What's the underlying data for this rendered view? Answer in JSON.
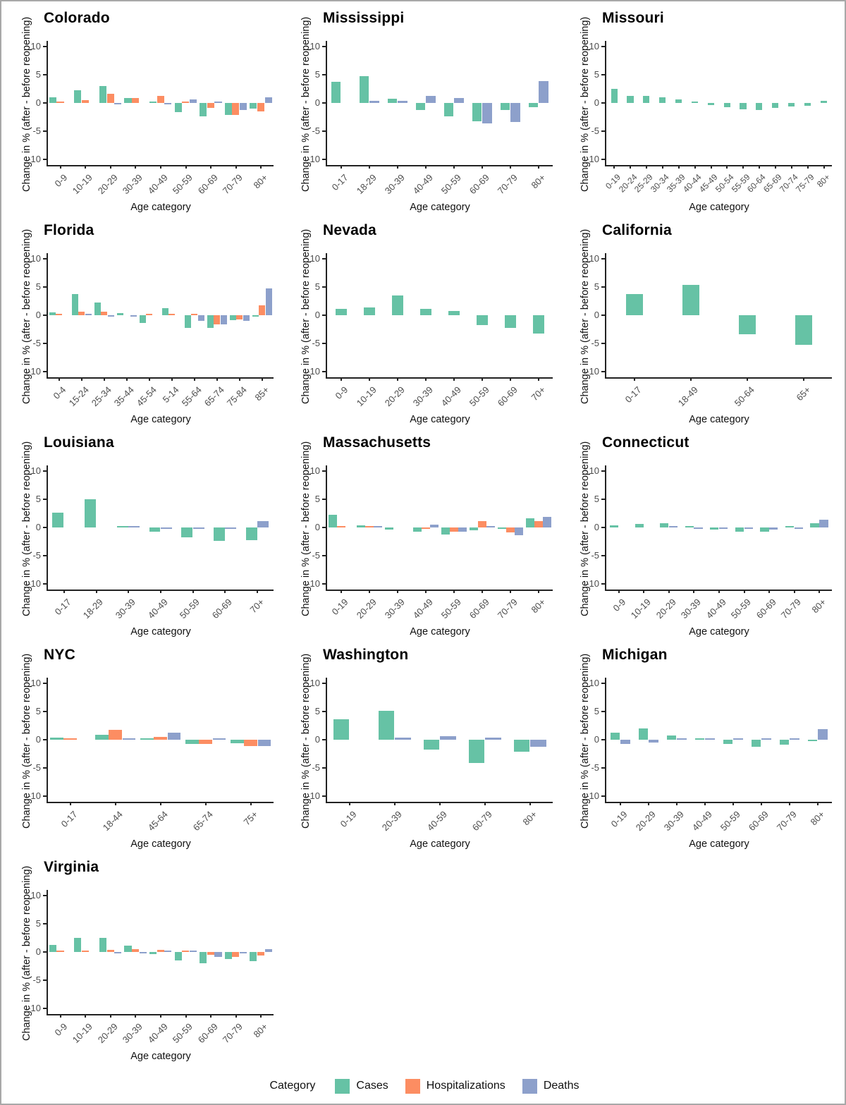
{
  "figure": {
    "ylabel": "Change in % (after - before reopening)",
    "xlabel": "Age category",
    "yticks": [
      10,
      5,
      0,
      -5,
      -10
    ],
    "ylim": [
      -11,
      11
    ],
    "colors": {
      "Cases": "#66C2A5",
      "Hospitalizations": "#FC8D62",
      "Deaths": "#8DA0CB"
    },
    "legend": {
      "title": "Category",
      "items": [
        {
          "label": "Cases",
          "color": "#66C2A5"
        },
        {
          "label": "Hospitalizations",
          "color": "#FC8D62"
        },
        {
          "label": "Deaths",
          "color": "#8DA0CB"
        }
      ]
    }
  },
  "chart_data": [
    {
      "type": "bar",
      "title": "Colorado",
      "xlabel": "Age category",
      "ylabel": "Change in % (after - before reopening)",
      "ylim": [
        -11,
        11
      ],
      "grid": false,
      "categories": [
        "0-9",
        "10-19",
        "20-29",
        "30-39",
        "40-49",
        "50-59",
        "60-69",
        "70-79",
        "80+"
      ],
      "series": [
        {
          "name": "Cases",
          "values": [
            1.0,
            2.2,
            3.0,
            0.9,
            0.3,
            -1.6,
            -2.4,
            -2.1,
            -1.0
          ]
        },
        {
          "name": "Hospitalizations",
          "values": [
            0.3,
            0.5,
            1.6,
            0.9,
            1.2,
            0.2,
            -0.9,
            -2.1,
            -1.5
          ]
        },
        {
          "name": "Deaths",
          "values": [
            null,
            null,
            -0.1,
            null,
            -0.3,
            0.6,
            0.2,
            -1.2,
            1.0
          ]
        }
      ]
    },
    {
      "type": "bar",
      "title": "Mississippi",
      "xlabel": "Age category",
      "ylabel": "Change in % (after - before reopening)",
      "ylim": [
        -11,
        11
      ],
      "grid": false,
      "categories": [
        "0-17",
        "18-29",
        "30-39",
        "40-49",
        "50-59",
        "60-69",
        "70-79",
        "80+"
      ],
      "series": [
        {
          "name": "Cases",
          "values": [
            3.8,
            4.8,
            0.8,
            -1.2,
            -2.4,
            -3.3,
            -1.3,
            -0.7
          ]
        },
        {
          "name": "Deaths",
          "values": [
            null,
            0.4,
            0.4,
            1.3,
            0.9,
            -3.6,
            -3.4,
            3.9
          ]
        }
      ]
    },
    {
      "type": "bar",
      "title": "Missouri",
      "xlabel": "Age category",
      "ylabel": "Change in % (after - before reopening)",
      "ylim": [
        -11,
        11
      ],
      "grid": false,
      "categories": [
        "0-19",
        "20-24",
        "25-29",
        "30-34",
        "35-39",
        "40-44",
        "45-49",
        "50-54",
        "55-59",
        "60-64",
        "65-69",
        "70-74",
        "75-79",
        "80+"
      ],
      "series": [
        {
          "name": "Cases",
          "values": [
            2.5,
            1.3,
            1.2,
            1.0,
            0.6,
            0,
            -0.4,
            -0.7,
            -1.1,
            -1.3,
            -0.9,
            -0.6,
            -0.5,
            0.4
          ]
        }
      ]
    },
    {
      "type": "bar",
      "title": "Florida",
      "xlabel": "Age category",
      "ylabel": "Change in % (after - before reopening)",
      "ylim": [
        -11,
        11
      ],
      "grid": false,
      "categories": [
        "0-4",
        "15-24",
        "25-34",
        "35-44",
        "45-54",
        "5-14",
        "55-64",
        "65-74",
        "75-84",
        "85+"
      ],
      "series": [
        {
          "name": "Cases",
          "values": [
            0.5,
            3.7,
            2.3,
            0.4,
            -1.4,
            1.2,
            -2.2,
            -2.3,
            -0.9,
            -0.2
          ]
        },
        {
          "name": "Hospitalizations",
          "values": [
            0.3,
            0.6,
            0.6,
            null,
            0.1,
            0.3,
            0.2,
            -1.6,
            -0.8,
            1.7
          ]
        },
        {
          "name": "Deaths",
          "values": [
            null,
            0.2,
            -0.3,
            -0.1,
            null,
            null,
            -1.0,
            -1.6,
            -1.0,
            4.8
          ]
        }
      ]
    },
    {
      "type": "bar",
      "title": "Nevada",
      "xlabel": "Age category",
      "ylabel": "Change in % (after - before reopening)",
      "ylim": [
        -11,
        11
      ],
      "grid": false,
      "categories": [
        "0-9",
        "10-19",
        "20-29",
        "30-39",
        "40-49",
        "50-59",
        "60-69",
        "70+"
      ],
      "series": [
        {
          "name": "Cases",
          "values": [
            1.1,
            1.4,
            3.5,
            1.1,
            0.8,
            -1.7,
            -2.2,
            -3.2
          ]
        }
      ]
    },
    {
      "type": "bar",
      "title": "California",
      "xlabel": "Age category",
      "ylabel": "Change in % (after - before reopening)",
      "ylim": [
        -11,
        11
      ],
      "grid": false,
      "categories": [
        "0-17",
        "18-49",
        "50-64",
        "65+"
      ],
      "series": [
        {
          "name": "Cases",
          "values": [
            3.7,
            5.4,
            -3.4,
            -5.3
          ]
        }
      ]
    },
    {
      "type": "bar",
      "title": "Louisiana",
      "xlabel": "Age category",
      "ylabel": "Change in % (after - before reopening)",
      "ylim": [
        -11,
        11
      ],
      "grid": false,
      "categories": [
        "0-17",
        "18-29",
        "30-39",
        "40-49",
        "50-59",
        "60-69",
        "70+"
      ],
      "series": [
        {
          "name": "Cases",
          "values": [
            2.6,
            5.0,
            0.3,
            -0.8,
            -1.8,
            -2.4,
            -2.2
          ]
        },
        {
          "name": "Deaths",
          "values": [
            null,
            null,
            0.1,
            -0.1,
            -0.2,
            -0.3,
            1.1
          ]
        }
      ]
    },
    {
      "type": "bar",
      "title": "Massachusetts",
      "xlabel": "Age category",
      "ylabel": "Change in % (after - before reopening)",
      "ylim": [
        -11,
        11
      ],
      "grid": false,
      "categories": [
        "0-19",
        "20-29",
        "30-39",
        "40-49",
        "50-59",
        "60-69",
        "70-79",
        "80+"
      ],
      "series": [
        {
          "name": "Cases",
          "values": [
            2.3,
            0.4,
            -0.4,
            -0.7,
            -1.3,
            -0.5,
            -0.3,
            1.6
          ]
        },
        {
          "name": "Hospitalizations",
          "values": [
            0.2,
            0.25,
            null,
            -0.2,
            -0.7,
            1.1,
            -0.9,
            1.1
          ]
        },
        {
          "name": "Deaths",
          "values": [
            null,
            0.15,
            null,
            0.5,
            -0.7,
            0.3,
            -1.4,
            1.9
          ]
        }
      ]
    },
    {
      "type": "bar",
      "title": "Connecticut",
      "xlabel": "Age category",
      "ylabel": "Change in % (after - before reopening)",
      "ylim": [
        -11,
        11
      ],
      "grid": false,
      "categories": [
        "0-9",
        "10-19",
        "20-29",
        "30-39",
        "40-49",
        "50-59",
        "60-69",
        "70-79",
        "80+"
      ],
      "series": [
        {
          "name": "Cases",
          "values": [
            0.4,
            0.6,
            0.8,
            0.2,
            -0.4,
            -0.7,
            -0.7,
            0.1,
            0.7
          ]
        },
        {
          "name": "Deaths",
          "values": [
            null,
            null,
            0.2,
            -0.1,
            -0.1,
            -0.2,
            -0.4,
            -0.3,
            1.4
          ]
        }
      ]
    },
    {
      "type": "bar",
      "title": "NYC",
      "xlabel": "Age category",
      "ylabel": "Change in % (after - before reopening)",
      "ylim": [
        -11,
        11
      ],
      "grid": false,
      "categories": [
        "0-17",
        "18-44",
        "45-64",
        "65-74",
        "75+"
      ],
      "series": [
        {
          "name": "Cases",
          "values": [
            0.4,
            0.9,
            0.1,
            -0.7,
            -0.6
          ]
        },
        {
          "name": "Hospitalizations",
          "values": [
            0.3,
            1.8,
            0.5,
            -0.8,
            -1.1
          ]
        },
        {
          "name": "Deaths",
          "values": [
            null,
            0.2,
            1.2,
            0.1,
            -1.1
          ]
        }
      ]
    },
    {
      "type": "bar",
      "title": "Washington",
      "xlabel": "Age category",
      "ylabel": "Change in % (after - before reopening)",
      "ylim": [
        -11,
        11
      ],
      "grid": false,
      "categories": [
        "0-19",
        "20-39",
        "40-59",
        "60-79",
        "80+"
      ],
      "series": [
        {
          "name": "Cases",
          "values": [
            3.6,
            5.1,
            -1.8,
            -4.1,
            -2.1
          ]
        },
        {
          "name": "Deaths",
          "values": [
            null,
            0.4,
            0.6,
            0.4,
            -1.2
          ]
        }
      ]
    },
    {
      "type": "bar",
      "title": "Michigan",
      "xlabel": "Age category",
      "ylabel": "Change in % (after - before reopening)",
      "ylim": [
        -11,
        11
      ],
      "grid": false,
      "categories": [
        "0-19",
        "20-29",
        "30-39",
        "40-49",
        "50-59",
        "60-69",
        "70-79",
        "80+"
      ],
      "series": [
        {
          "name": "Cases",
          "values": [
            1.3,
            2.0,
            0.8,
            0.2,
            -0.7,
            -1.2,
            -0.9,
            -0.3
          ]
        },
        {
          "name": "Deaths",
          "values": [
            -0.7,
            -0.5,
            0.1,
            0.1,
            0.1,
            0.1,
            0.1,
            1.9
          ]
        }
      ]
    },
    {
      "type": "bar",
      "title": "Virginia",
      "xlabel": "Age category",
      "ylabel": "Change in % (after - before reopening)",
      "ylim": [
        -11,
        11
      ],
      "grid": false,
      "categories": [
        "0-9",
        "10-19",
        "20-29",
        "30-39",
        "40-49",
        "50-59",
        "60-69",
        "70-79",
        "80+"
      ],
      "series": [
        {
          "name": "Cases",
          "values": [
            1.2,
            2.5,
            2.5,
            1.1,
            -0.4,
            -1.5,
            -2.0,
            -1.3,
            -1.6
          ]
        },
        {
          "name": "Hospitalizations",
          "values": [
            0.2,
            0.2,
            0.4,
            0.5,
            0.4,
            0.2,
            -0.5,
            -0.9,
            -0.6
          ]
        },
        {
          "name": "Deaths",
          "values": [
            null,
            null,
            -0.1,
            -0.1,
            0.3,
            0.3,
            -0.9,
            -0.2,
            0.5
          ]
        }
      ]
    }
  ]
}
